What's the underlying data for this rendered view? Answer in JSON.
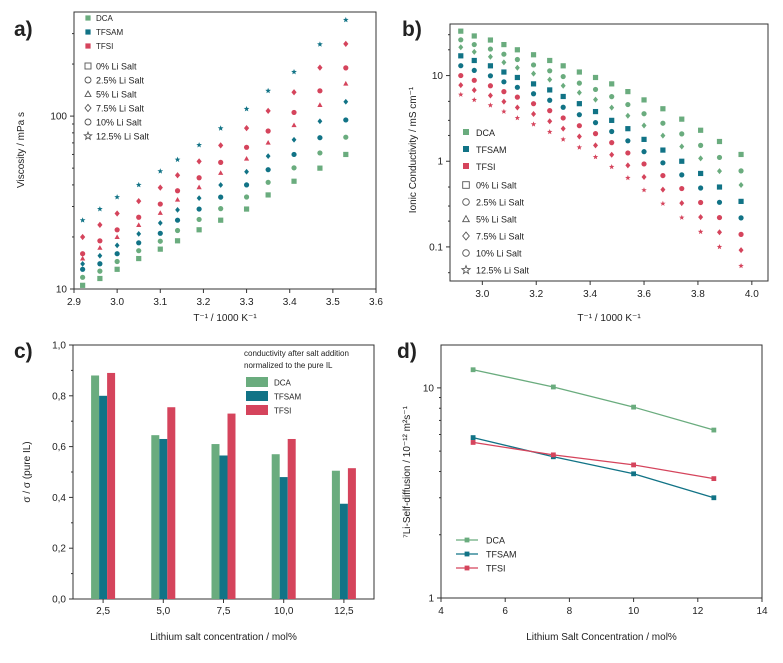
{
  "colors": {
    "DCA": "#6aac7e",
    "TFSAM": "#117386",
    "TFSI": "#d5445c",
    "axis": "#333333",
    "legend_marker": "#555555"
  },
  "chart_data": [
    {
      "panel": "a)",
      "type": "scatter",
      "xlabel": "T⁻¹ / 1000 K⁻¹",
      "ylabel": "Viscosity / mPa s",
      "xlim": [
        2.9,
        3.6
      ],
      "ylim": [
        10,
        400
      ],
      "yscale": "log",
      "x_ticks": [
        "2.9",
        "3.0",
        "3.1",
        "3.2",
        "3.3",
        "3.4",
        "3.5",
        "3.6"
      ],
      "y_ticks": [
        "10",
        "100"
      ],
      "legend": {
        "series": [
          "DCA",
          "TFSAM",
          "TFSI"
        ],
        "markers": [
          "0% Li Salt",
          "2.5% Li Salt",
          "5% Li Salt",
          "7.5% Li Salt",
          "10% Li Salt",
          "12.5% Li Salt"
        ]
      },
      "x": [
        2.92,
        2.96,
        3.0,
        3.05,
        3.1,
        3.14,
        3.19,
        3.24,
        3.3,
        3.35,
        3.41,
        3.47,
        3.53
      ],
      "series": [
        {
          "name": "DCA",
          "values": [
            10.5,
            11.5,
            13,
            15,
            17,
            19,
            22,
            25,
            29,
            35,
            42,
            50,
            60
          ]
        },
        {
          "name": "TFSAM",
          "values": [
            13,
            14,
            16,
            18.5,
            21,
            25,
            29,
            34,
            40,
            49,
            60,
            75,
            95
          ]
        },
        {
          "name": "TFSI",
          "values": [
            16,
            19,
            22,
            26,
            31,
            37,
            44,
            54,
            66,
            82,
            105,
            140,
            190
          ]
        },
        {
          "name": "12.5% Li Salt",
          "values": [
            25,
            29,
            34,
            40,
            48,
            56,
            68,
            85,
            110,
            140,
            180,
            260,
            360
          ]
        }
      ]
    },
    {
      "panel": "b)",
      "type": "scatter",
      "xlabel": "T⁻¹ / 1000 K⁻¹",
      "ylabel": "Ionic Conductivity / mS cm⁻¹",
      "xlim": [
        2.88,
        4.06
      ],
      "ylim": [
        0.04,
        40
      ],
      "yscale": "log",
      "x_ticks": [
        "3.0",
        "3.2",
        "3.4",
        "3.6",
        "3.8",
        "4.0"
      ],
      "y_ticks": [
        "0.1",
        "1",
        "10"
      ],
      "legend": {
        "series": [
          "DCA",
          "TFSAM",
          "TFSI"
        ],
        "markers": [
          "0% Li Salt",
          "2.5% Li Salt",
          "5% Li Salt",
          "7.5% Li Salt",
          "10% Li Salt",
          "12.5% Li Salt"
        ]
      },
      "x": [
        2.92,
        2.97,
        3.03,
        3.08,
        3.13,
        3.19,
        3.25,
        3.3,
        3.36,
        3.42,
        3.48,
        3.54,
        3.6,
        3.67,
        3.74,
        3.81,
        3.88,
        3.96
      ],
      "series": [
        {
          "name": "DCA",
          "values": [
            33,
            29,
            26,
            23,
            20,
            17.5,
            15,
            13,
            11,
            9.5,
            8,
            6.5,
            5.2,
            4.1,
            3.1,
            2.3,
            1.7,
            1.2
          ]
        },
        {
          "name": "TFSAM",
          "values": [
            17,
            15,
            13,
            11,
            9.5,
            8,
            6.8,
            5.7,
            4.7,
            3.8,
            3.0,
            2.4,
            1.8,
            1.35,
            1.0,
            0.72,
            0.5,
            0.34
          ]
        },
        {
          "name": "TFSI",
          "values": [
            10,
            8.8,
            7.6,
            6.5,
            5.6,
            4.7,
            3.9,
            3.2,
            2.6,
            2.1,
            1.65,
            1.25,
            0.93,
            0.68,
            0.48,
            0.33,
            0.22,
            0.14
          ]
        },
        {
          "name": "12.5% Li Salt",
          "values": [
            6,
            5.2,
            4.5,
            3.8,
            3.2,
            2.7,
            2.2,
            1.8,
            1.45,
            1.12,
            0.86,
            0.64,
            0.46,
            0.32,
            0.22,
            0.15,
            0.1,
            0.06
          ]
        }
      ]
    },
    {
      "panel": "c)",
      "type": "bar",
      "title": "conductivity after salt addition normalized to the pure IL",
      "title_lines": [
        "conductivity after salt addition",
        "normalized to the pure IL"
      ],
      "xlabel": "Lithium salt concentration / mol%",
      "ylabel": "σ / σ (pure IL)",
      "ylim": [
        0,
        1.0
      ],
      "y_ticks": [
        "0,0",
        "0,2",
        "0,4",
        "0,6",
        "0,8",
        "1,0"
      ],
      "categories": [
        "2,5",
        "5,0",
        "7,5",
        "10,0",
        "12,5"
      ],
      "series": [
        {
          "name": "DCA",
          "values": [
            0.88,
            0.645,
            0.61,
            0.57,
            0.505
          ]
        },
        {
          "name": "TFSAM",
          "values": [
            0.8,
            0.63,
            0.565,
            0.48,
            0.375
          ]
        },
        {
          "name": "TFSI",
          "values": [
            0.89,
            0.755,
            0.73,
            0.63,
            0.515
          ]
        }
      ]
    },
    {
      "panel": "d)",
      "type": "line",
      "xlabel": "Lithium Salt Concentration / mol%",
      "ylabel": "⁷Li-Self-diffusion / 10⁻¹² m²s⁻¹",
      "xlim": [
        4,
        14
      ],
      "ylim": [
        1,
        16
      ],
      "yscale": "log",
      "x_ticks": [
        "4",
        "6",
        "8",
        "10",
        "12",
        "14"
      ],
      "y_ticks": [
        "1",
        "10"
      ],
      "x": [
        5,
        7.5,
        10,
        12.5
      ],
      "series": [
        {
          "name": "DCA",
          "values": [
            12.2,
            10.1,
            8.1,
            6.3
          ]
        },
        {
          "name": "TFSAM",
          "values": [
            5.8,
            4.7,
            3.9,
            3.0
          ]
        },
        {
          "name": "TFSI",
          "values": [
            5.5,
            4.8,
            4.3,
            3.7
          ]
        }
      ]
    }
  ]
}
